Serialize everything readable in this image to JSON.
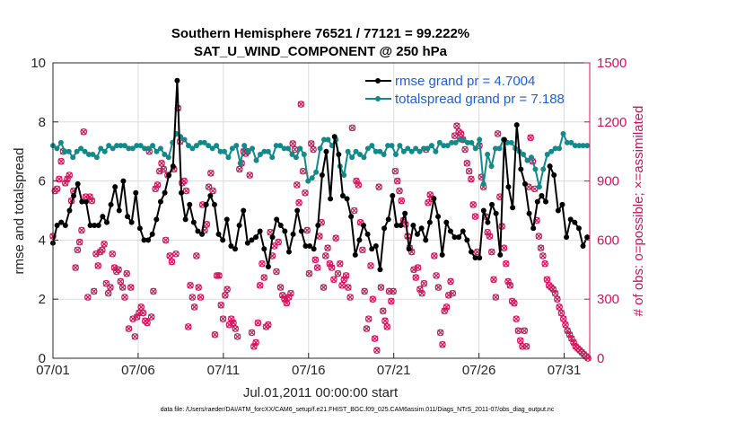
{
  "chart_data": {
    "type": "line",
    "title": "Southern Hemisphere 76521 / 77121 = 99.222%",
    "subtitle": "SAT_U_WIND_COMPONENT @ 250 hPa",
    "xlabel": "Jul.01,2011 00:00:00 start",
    "ylabel": "rmse and totalspread",
    "y2label": "# of obs: o=possible; ×=assimilated",
    "footer": "data file: /Users/raeder/DAI/ATM_forcXX/CAM6_setup/f.e21.FHIST_BGC.f09_025.CAM6assim.011/Diags_NTrS_2011-07/obs_diag_output.nc",
    "xlim": [
      0,
      31.5
    ],
    "ylim": [
      0,
      10
    ],
    "y2lim": [
      0,
      1500
    ],
    "x_ticks": [
      0,
      5,
      10,
      15,
      20,
      25,
      30
    ],
    "x_tick_labels": [
      "07/01",
      "07/06",
      "07/11",
      "07/16",
      "07/21",
      "07/26",
      "07/31"
    ],
    "y_ticks": [
      0,
      2,
      4,
      6,
      8,
      10
    ],
    "y_tick_labels": [
      "0",
      "2",
      "4",
      "6",
      "8",
      "10"
    ],
    "y2_ticks": [
      0,
      300,
      600,
      900,
      1200,
      1500
    ],
    "y2_tick_labels": [
      "0",
      "300",
      "600",
      "900",
      "1200",
      "1500"
    ],
    "colors": {
      "rmse": "#000000",
      "spread": "#138a8a",
      "obs": "#d0145a",
      "legend_text": "#1f5fd6"
    },
    "series": [
      {
        "name": "rmse grand pr = 4.7004",
        "axis": "left",
        "values": [
          3.9,
          4.5,
          4.6,
          4.5,
          5.0,
          5.5,
          5.9,
          5.3,
          5.3,
          4.5,
          4.5,
          4.5,
          4.8,
          4.6,
          5.2,
          5.8,
          5.0,
          6.0,
          4.8,
          4.6,
          5.6,
          4.4,
          4.0,
          4.0,
          4.2,
          4.7,
          5.3,
          5.6,
          6.2,
          6.5,
          9.4,
          5.6,
          4.7,
          5.2,
          4.6,
          4.3,
          4.2,
          5.2,
          5.5,
          5.2,
          4.2,
          4.0,
          4.7,
          3.8,
          3.7,
          4.5,
          5.0,
          3.9,
          4.0,
          4.1,
          4.3,
          3.7,
          3.1,
          4.1,
          4.7,
          4.5,
          4.3,
          3.6,
          4.2,
          5.0,
          4.3,
          3.8,
          3.8,
          3.7,
          4.5,
          6.2,
          7.0,
          5.4,
          7.5,
          6.9,
          5.5,
          5.4,
          4.8,
          3.5,
          4.0,
          4.5,
          4.2,
          3.7,
          3.8,
          3.0,
          4.4,
          4.7,
          5.5,
          4.5,
          4.5,
          4.9,
          3.7,
          4.5,
          4.2,
          4.4,
          4.0,
          4.6,
          5.4,
          4.8,
          3.5,
          4.6,
          4.3,
          4.1,
          4.1,
          4.3,
          4.0,
          3.6,
          3.4,
          3.4,
          5.0,
          4.6,
          5.2,
          4.9,
          3.5,
          7.4,
          5.8,
          5.1,
          7.9,
          6.4,
          5.9,
          4.9,
          4.4,
          5.3,
          5.5,
          5.3,
          6.5,
          6.2,
          5.0,
          5.2,
          4.1,
          4.7,
          4.6,
          4.4,
          3.8,
          4.1
        ]
      },
      {
        "name": "totalspread grand pr = 7.188",
        "axis": "left",
        "values": [
          7.2,
          7.1,
          7.3,
          7.0,
          7.0,
          6.8,
          7.0,
          7.1,
          7.0,
          6.9,
          6.9,
          6.8,
          7.1,
          7.0,
          7.2,
          7.1,
          7.2,
          7.2,
          7.2,
          7.1,
          7.1,
          7.2,
          7.2,
          7.1,
          7.1,
          7.2,
          7.0,
          7.1,
          6.9,
          6.8,
          7.3,
          7.6,
          7.5,
          7.4,
          7.2,
          7.1,
          7.2,
          7.3,
          7.3,
          7.2,
          7.1,
          7.2,
          7.0,
          7.0,
          6.8,
          7.1,
          7.2,
          6.6,
          7.2,
          7.0,
          7.1,
          6.7,
          6.9,
          7.0,
          7.0,
          6.8,
          7.2,
          7.2,
          7.1,
          7.1,
          6.9,
          6.8,
          7.1,
          6.9,
          6.0,
          6.1,
          6.3,
          7.1,
          7.4,
          7.4,
          7.2,
          7.4,
          6.5,
          6.2,
          7.0,
          6.8,
          7.0,
          6.9,
          6.8,
          7.1,
          7.2,
          7.0,
          7.0,
          6.9,
          7.2,
          7.2,
          6.9,
          7.2,
          7.0,
          7.1,
          7.0,
          7.1,
          7.0,
          7.1,
          7.1,
          7.2,
          7.0,
          7.3,
          7.2,
          7.2,
          7.3,
          7.3,
          7.4,
          7.4,
          7.3,
          7.3,
          7.1,
          7.4,
          5.9,
          6.9,
          6.5,
          7.1,
          7.1,
          7.4,
          7.3,
          7.3,
          7.1,
          7.0,
          6.9,
          6.7,
          6.8,
          6.4,
          5.8,
          6.4,
          6.9,
          7.0,
          7.1,
          7.1,
          7.6,
          7.3,
          7.3,
          7.2,
          7.2,
          7.2,
          7.2
        ]
      },
      {
        "name": "observations assimilated",
        "axis": "right",
        "style": "markers",
        "values": [
          620,
          850,
          860,
          910,
          1000,
          1050,
          890,
          910,
          930,
          800,
          850,
          460,
          550,
          590,
          650,
          1150,
          820,
          310,
          820,
          800,
          340,
          530,
          470,
          540,
          550,
          580,
          380,
          330,
          360,
          530,
          460,
          440,
          450,
          390,
          360,
          310,
          430,
          150,
          360,
          200,
          110,
          210,
          230,
          260,
          230,
          190,
          180,
          1050,
          210,
          340,
          860,
          880,
          950,
          990,
          960,
          600,
          930,
          520,
          490,
          960,
          530,
          1270,
          1100,
          890,
          900,
          850,
          160,
          370,
          310,
          260,
          520,
          360,
          310,
          780,
          650,
          680,
          870,
          940,
          850,
          120,
          420,
          420,
          270,
          200,
          320,
          350,
          170,
          200,
          180,
          150,
          110,
          960,
          990,
          1050,
          1040,
          1050,
          930,
          130,
          60,
          80,
          180,
          370,
          480,
          410,
          160,
          170,
          640,
          520,
          570,
          440,
          590,
          360,
          320,
          300,
          280,
          310,
          330,
          1090,
          1060,
          880,
          790,
          1290,
          950,
          840,
          650,
          430,
          1090,
          1060,
          500,
          460,
          620,
          690,
          360,
          520,
          560,
          480,
          460,
          400,
          610,
          430,
          480,
          370,
          400,
          420,
          360,
          310,
          1170,
          750,
          900,
          880,
          690,
          550,
          340,
          150,
          200,
          470,
          300,
          100,
          40,
          870,
          360,
          240,
          190,
          160,
          340,
          290,
          340,
          950,
          900,
          850,
          800,
          700,
          680,
          620,
          560,
          540,
          450,
          410,
          460,
          350,
          330,
          380,
          1060,
          790,
          830,
          810,
          520,
          420,
          360,
          130,
          70,
          240,
          260,
          320,
          390,
          330,
          1130,
          1180,
          1150,
          1140,
          1110,
          1060,
          990,
          950,
          910,
          780,
          720,
          540,
          1080,
          920,
          870,
          720,
          640,
          620,
          540,
          400,
          310,
          1140,
          820,
          670,
          560,
          480,
          390,
          370,
          290,
          280,
          200,
          140,
          90,
          60,
          140,
          60,
          870,
          1120,
          1000,
          860,
          700,
          620,
          560,
          520,
          480,
          400,
          370,
          360,
          350,
          330,
          300,
          260,
          230,
          200,
          170,
          140,
          120,
          100,
          80,
          60,
          50,
          40,
          30,
          20,
          10,
          0
        ]
      }
    ],
    "legend": [
      "rmse grand pr = 4.7004",
      "totalspread grand pr = 7.188"
    ]
  }
}
